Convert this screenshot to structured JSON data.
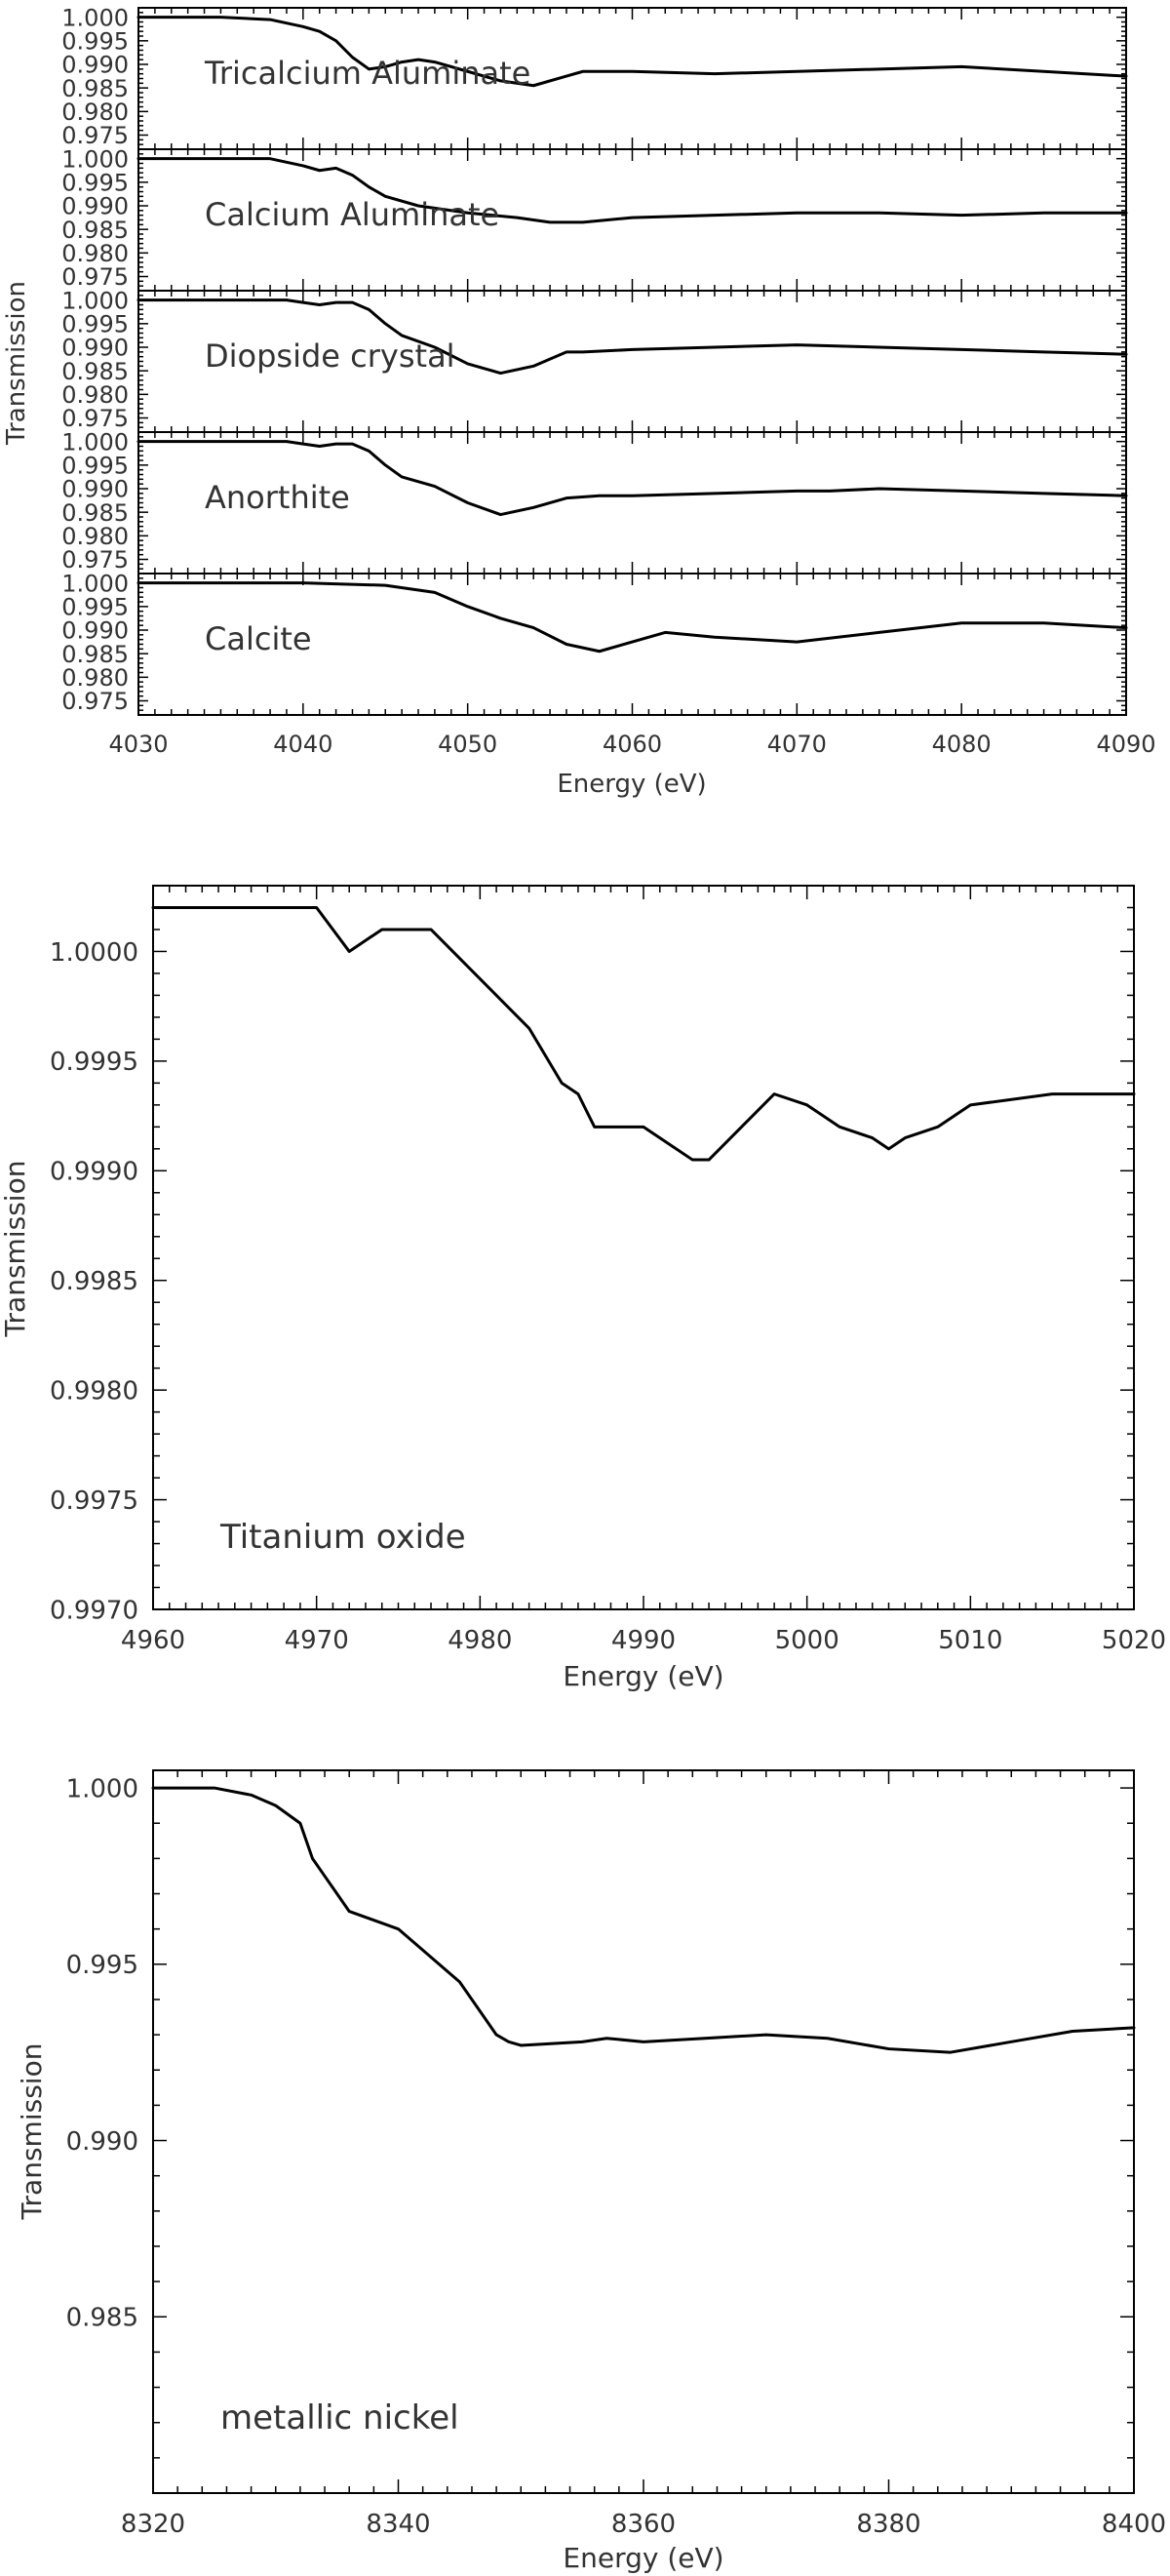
{
  "chart_data": [
    {
      "type": "line",
      "layout": "stacked-panels",
      "xlabel": "Energy (eV)",
      "ylabel": "Transmission",
      "xlim": [
        4030,
        4090
      ],
      "xticks": [
        "4030",
        "4040",
        "4050",
        "4060",
        "4070",
        "4080",
        "4090"
      ],
      "ylim": [
        0.972,
        1.002
      ],
      "yticks": [
        "1.000",
        "0.995",
        "0.990",
        "0.985",
        "0.980",
        "0.975"
      ],
      "panels": [
        {
          "name": "Tricalcium Aluminate",
          "x": [
            4030,
            4035,
            4038,
            4040,
            4041,
            4042,
            4043,
            4044,
            4045,
            4046,
            4047,
            4048,
            4050,
            4052,
            4054,
            4056,
            4057,
            4060,
            4065,
            4070,
            4075,
            4080,
            4085,
            4090
          ],
          "y": [
            1.0,
            1.0,
            0.9995,
            0.998,
            0.997,
            0.995,
            0.9915,
            0.989,
            0.9895,
            0.9905,
            0.991,
            0.9905,
            0.9885,
            0.9865,
            0.9855,
            0.9875,
            0.9885,
            0.9885,
            0.988,
            0.9885,
            0.989,
            0.9895,
            0.9885,
            0.9875
          ]
        },
        {
          "name": "Calcium Aluminate",
          "x": [
            4030,
            4035,
            4038,
            4040,
            4041,
            4042,
            4043,
            4044,
            4045,
            4047,
            4050,
            4053,
            4055,
            4057,
            4060,
            4065,
            4070,
            4075,
            4080,
            4085,
            4090
          ],
          "y": [
            1.0,
            1.0,
            1.0,
            0.9985,
            0.9975,
            0.998,
            0.9965,
            0.994,
            0.992,
            0.99,
            0.9885,
            0.9875,
            0.9865,
            0.9865,
            0.9875,
            0.988,
            0.9885,
            0.9885,
            0.988,
            0.9885,
            0.9885
          ]
        },
        {
          "name": "Diopside crystal",
          "x": [
            4030,
            4035,
            4039,
            4040,
            4041,
            4042,
            4043,
            4044,
            4045,
            4046,
            4048,
            4050,
            4052,
            4054,
            4055,
            4056,
            4057,
            4060,
            4065,
            4070,
            4075,
            4080,
            4085,
            4090
          ],
          "y": [
            1.0,
            1.0,
            1.0,
            0.9995,
            0.999,
            0.9995,
            0.9995,
            0.998,
            0.995,
            0.9925,
            0.99,
            0.9865,
            0.9845,
            0.986,
            0.9875,
            0.989,
            0.989,
            0.9895,
            0.99,
            0.9905,
            0.99,
            0.9895,
            0.989,
            0.9885
          ]
        },
        {
          "name": "Anorthite",
          "x": [
            4030,
            4035,
            4039,
            4040,
            4041,
            4042,
            4043,
            4044,
            4045,
            4046,
            4048,
            4050,
            4052,
            4054,
            4056,
            4058,
            4060,
            4065,
            4070,
            4072,
            4075,
            4080,
            4085,
            4090
          ],
          "y": [
            1.0,
            1.0,
            1.0,
            0.9995,
            0.999,
            0.9995,
            0.9995,
            0.998,
            0.995,
            0.9925,
            0.9905,
            0.987,
            0.9845,
            0.986,
            0.988,
            0.9885,
            0.9885,
            0.989,
            0.9895,
            0.9895,
            0.99,
            0.9895,
            0.989,
            0.9885
          ]
        },
        {
          "name": "Calcite",
          "x": [
            4030,
            4040,
            4045,
            4048,
            4050,
            4052,
            4054,
            4056,
            4058,
            4060,
            4062,
            4065,
            4070,
            4075,
            4080,
            4085,
            4090
          ],
          "y": [
            1.0,
            1.0,
            0.9995,
            0.998,
            0.995,
            0.9925,
            0.9905,
            0.987,
            0.9855,
            0.9875,
            0.9895,
            0.9885,
            0.9875,
            0.9895,
            0.9915,
            0.9915,
            0.9905
          ]
        }
      ]
    },
    {
      "type": "line",
      "annotation": "Titanium oxide",
      "xlabel": "Energy (eV)",
      "ylabel": "Transmission",
      "xlim": [
        4960,
        5020
      ],
      "xticks": [
        "4960",
        "4970",
        "4980",
        "4990",
        "5000",
        "5010",
        "5020"
      ],
      "ylim": [
        0.997,
        1.0003
      ],
      "yticks": [
        "1.0000",
        "0.9995",
        "0.9990",
        "0.9985",
        "0.9980",
        "0.9975",
        "0.9970"
      ],
      "x": [
        4960,
        4965,
        4970,
        4972,
        4974,
        4976,
        4977,
        4979,
        4981,
        4983,
        4985,
        4986,
        4987,
        4988,
        4990,
        4991,
        4993,
        4994,
        4996,
        4998,
        5000,
        5002,
        5004,
        5005,
        5006,
        5008,
        5010,
        5015,
        5020
      ],
      "y": [
        1.0002,
        1.0002,
        1.0002,
        1.0,
        1.0001,
        1.0001,
        1.0001,
        0.99995,
        0.9998,
        0.99965,
        0.9994,
        0.99935,
        0.9992,
        0.9992,
        0.9992,
        0.99915,
        0.99905,
        0.99905,
        0.9992,
        0.99935,
        0.9993,
        0.9992,
        0.99915,
        0.9991,
        0.99915,
        0.9992,
        0.9993,
        0.99935,
        0.99935
      ]
    },
    {
      "type": "line",
      "annotation": "metallic nickel",
      "xlabel": "Energy (eV)",
      "ylabel": "Transmission",
      "xlim": [
        8320,
        8400
      ],
      "xticks": [
        "8320",
        "8340",
        "8360",
        "8380",
        "8400"
      ],
      "ylim": [
        0.98,
        1.0005
      ],
      "yticks": [
        "1.000",
        "0.995",
        "0.990",
        "0.985"
      ],
      "x": [
        8320,
        8325,
        8328,
        8330,
        8332,
        8333,
        8334,
        8335,
        8336,
        8340,
        8345,
        8347,
        8348,
        8349,
        8350,
        8355,
        8357,
        8360,
        8365,
        8370,
        8375,
        8380,
        8385,
        8390,
        8395,
        8400
      ],
      "y": [
        1.0,
        1.0,
        0.9998,
        0.9995,
        0.999,
        0.998,
        0.9975,
        0.997,
        0.9965,
        0.996,
        0.9945,
        0.9935,
        0.993,
        0.9928,
        0.9927,
        0.9928,
        0.9929,
        0.9928,
        0.9929,
        0.993,
        0.9929,
        0.9926,
        0.9925,
        0.9928,
        0.9931,
        0.9932
      ]
    }
  ]
}
